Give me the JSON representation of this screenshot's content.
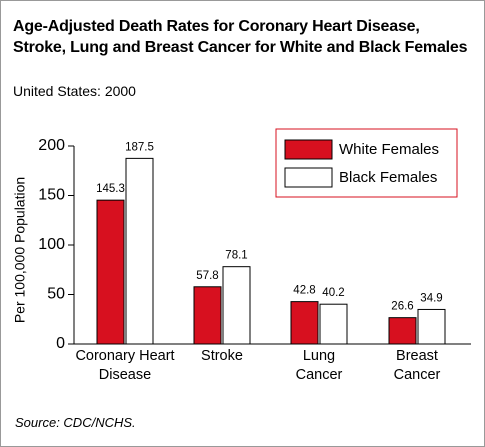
{
  "chart_data": {
    "type": "bar",
    "title": "Age-Adjusted Death Rates for Coronary Heart Disease, Stroke, Lung and Breast Cancer for White and Black Females",
    "subtitle": "United States: 2000",
    "y_label": "Per 100,000 Population",
    "categories": [
      "Coronary Heart Disease",
      "Stroke",
      "Lung Cancer",
      "Breast Cancer"
    ],
    "series": [
      {
        "name": "White Females",
        "color": "#d7101f",
        "values": [
          145.3,
          57.8,
          42.8,
          26.6
        ]
      },
      {
        "name": "Black Females",
        "color": "#ffffff",
        "values": [
          187.5,
          78.1,
          40.2,
          34.9
        ]
      }
    ],
    "ylim": [
      0,
      200
    ],
    "yticks": [
      0,
      50,
      100,
      150,
      200
    ],
    "legend": "top-right",
    "legend_border_color": "#d7101f",
    "source": "Source: CDC/NCHS."
  }
}
